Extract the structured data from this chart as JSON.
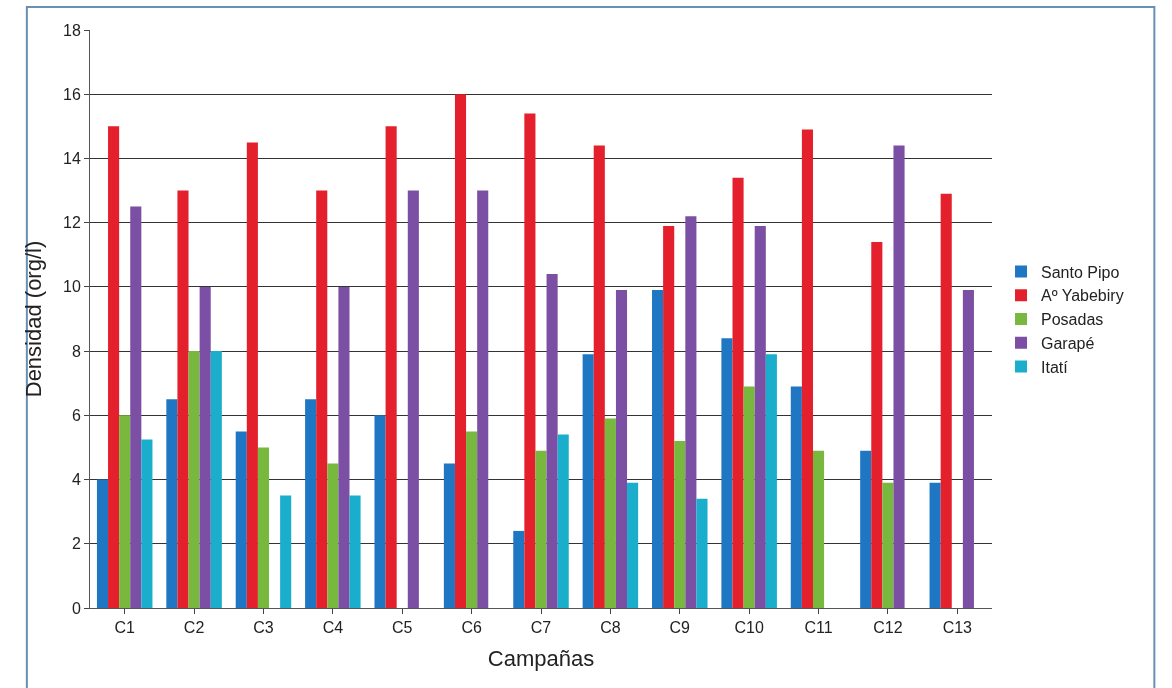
{
  "chart_data": {
    "type": "bar",
    "xlabel": "Campañas",
    "ylabel": "Densidad (org/l)",
    "categories": [
      "C1",
      "C2",
      "C3",
      "C4",
      "C5",
      "C6",
      "C7",
      "C8",
      "C9",
      "C10",
      "C11",
      "C12",
      "C13"
    ],
    "series": [
      {
        "name": "Santo Pipo",
        "color": "#1f77c4",
        "values": [
          4.0,
          6.5,
          5.5,
          6.5,
          6.0,
          4.5,
          2.4,
          7.9,
          9.9,
          8.4,
          6.9,
          4.9,
          3.9
        ]
      },
      {
        "name": "Aº Yabebiry",
        "color": "#e3202b",
        "values": [
          15.0,
          13.0,
          14.5,
          13.0,
          15.0,
          16.0,
          15.4,
          14.4,
          11.9,
          13.4,
          14.9,
          11.4,
          12.9
        ]
      },
      {
        "name": "Posadas",
        "color": "#79b83f",
        "values": [
          6.0,
          8.0,
          5.0,
          4.5,
          null,
          5.5,
          4.9,
          5.9,
          5.2,
          6.9,
          4.9,
          3.9,
          null
        ]
      },
      {
        "name": "Garapé",
        "color": "#7b4fa3",
        "values": [
          12.5,
          10.0,
          null,
          10.0,
          13.0,
          13.0,
          10.4,
          9.9,
          12.2,
          11.9,
          null,
          14.4,
          9.9
        ]
      },
      {
        "name": "Itatí",
        "color": "#1aadcc",
        "values": [
          5.25,
          8.0,
          3.5,
          3.5,
          null,
          null,
          5.4,
          3.9,
          3.4,
          7.9,
          null,
          null,
          null
        ]
      }
    ],
    "ylim": [
      0,
      18
    ],
    "yticks": [
      0,
      2,
      4,
      6,
      8,
      10,
      12,
      14,
      16,
      18
    ],
    "grid": "y",
    "legend": "right"
  }
}
